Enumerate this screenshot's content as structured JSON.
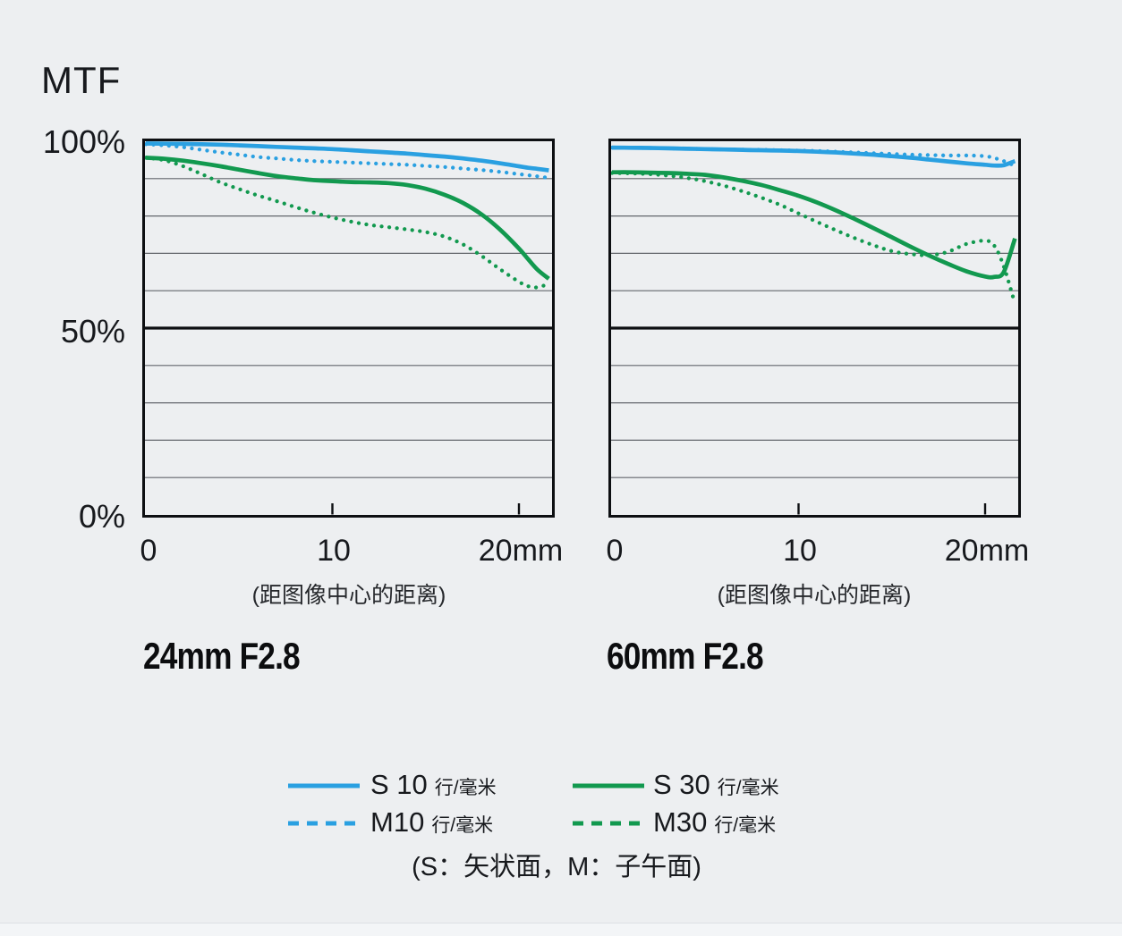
{
  "page": {
    "title": "MTF"
  },
  "colors": {
    "background": "#edeff1",
    "blue": "#2aa0e1",
    "green": "#12994f",
    "axis": "#0d0f12",
    "grid": "#63666c"
  },
  "axis": {
    "y_ticks": [
      "100%",
      "50%",
      "0%"
    ],
    "x_ticks": [
      "0",
      "10",
      "20mm"
    ],
    "x_caption": "(距图像中心的距离)"
  },
  "legend": {
    "items": [
      {
        "label": "S 10",
        "unit": "行/毫米",
        "color": "#2aa0e1",
        "style": "solid"
      },
      {
        "label": "S 30",
        "unit": "行/毫米",
        "color": "#12994f",
        "style": "solid"
      },
      {
        "label": "M10",
        "unit": "行/毫米",
        "color": "#2aa0e1",
        "style": "dashed"
      },
      {
        "label": "M30",
        "unit": "行/毫米",
        "color": "#12994f",
        "style": "dashed"
      }
    ],
    "note": "(S：矢状面，M：子午面)"
  },
  "chart_data": [
    {
      "type": "line",
      "title": "24mm F2.8",
      "xlabel": "(距图像中心的距离)",
      "ylabel": "MTF",
      "xlim": [
        0,
        21.6
      ],
      "ylim": [
        0,
        100
      ],
      "x_tick_values": [
        0,
        10,
        20
      ],
      "grid_step_pct": 10,
      "x": [
        0,
        1,
        2,
        3,
        4,
        5,
        6,
        7,
        8,
        9,
        10,
        11,
        12,
        13,
        14,
        15,
        16,
        17,
        18,
        19,
        20,
        20.5,
        21,
        21.6
      ],
      "series": [
        {
          "name": "S 10 行/毫米",
          "color": "#2aa0e1",
          "dashed": false,
          "values": [
            99.4,
            99.35,
            99.3,
            99.2,
            99.1,
            98.9,
            98.7,
            98.5,
            98.3,
            98.1,
            97.9,
            97.6,
            97.3,
            97.0,
            96.7,
            96.3,
            95.9,
            95.4,
            94.8,
            94.1,
            93.3,
            92.9,
            92.6,
            92.2
          ]
        },
        {
          "name": "M10 行/毫米",
          "color": "#2aa0e1",
          "dashed": true,
          "values": [
            99.2,
            98.9,
            98.4,
            97.7,
            97.0,
            96.4,
            95.8,
            95.4,
            95.0,
            94.7,
            94.5,
            94.3,
            94.1,
            93.9,
            93.7,
            93.4,
            93.1,
            92.7,
            92.3,
            91.8,
            91.2,
            90.9,
            90.6,
            90.2
          ]
        },
        {
          "name": "S 30 行/毫米",
          "color": "#12994f",
          "dashed": false,
          "values": [
            95.6,
            95.3,
            94.8,
            94.1,
            93.3,
            92.4,
            91.5,
            90.7,
            90.1,
            89.6,
            89.3,
            89.1,
            89.0,
            88.8,
            88.3,
            87.3,
            85.7,
            83.5,
            80.4,
            76.3,
            71.3,
            68.4,
            65.6,
            63.2
          ]
        },
        {
          "name": "M30 行/毫米",
          "color": "#12994f",
          "dashed": true,
          "values": [
            95.6,
            94.9,
            93.3,
            91.2,
            89.0,
            87.2,
            85.5,
            84.0,
            82.4,
            80.9,
            79.6,
            78.5,
            77.6,
            77.0,
            76.4,
            75.7,
            74.5,
            72.4,
            69.3,
            65.7,
            62.4,
            61.2,
            60.9,
            61.9
          ]
        }
      ]
    },
    {
      "type": "line",
      "title": "60mm F2.8",
      "xlabel": "(距图像中心的距离)",
      "ylabel": "MTF",
      "xlim": [
        0,
        21.6
      ],
      "ylim": [
        0,
        100
      ],
      "x_tick_values": [
        0,
        10,
        20
      ],
      "grid_step_pct": 10,
      "x": [
        0,
        1,
        2,
        3,
        4,
        5,
        6,
        7,
        8,
        9,
        10,
        11,
        12,
        13,
        14,
        15,
        16,
        17,
        18,
        19,
        20,
        20.5,
        21,
        21.6
      ],
      "series": [
        {
          "name": "S 10 行/毫米",
          "color": "#2aa0e1",
          "dashed": false,
          "values": [
            98.3,
            98.25,
            98.2,
            98.1,
            98.0,
            97.9,
            97.8,
            97.7,
            97.6,
            97.5,
            97.4,
            97.2,
            97.0,
            96.7,
            96.4,
            96.0,
            95.6,
            95.1,
            94.6,
            94.1,
            93.7,
            93.5,
            93.6,
            94.7
          ]
        },
        {
          "name": "M10 行/毫米",
          "color": "#2aa0e1",
          "dashed": true,
          "values": [
            98.3,
            98.25,
            98.2,
            98.1,
            98.0,
            97.9,
            97.8,
            97.75,
            97.7,
            97.6,
            97.5,
            97.4,
            97.2,
            97.0,
            96.8,
            96.6,
            96.4,
            96.3,
            96.2,
            96.2,
            96.0,
            95.5,
            94.7,
            93.4
          ]
        },
        {
          "name": "S 30 行/毫米",
          "color": "#12994f",
          "dashed": false,
          "values": [
            91.7,
            91.7,
            91.6,
            91.5,
            91.3,
            91.0,
            90.3,
            89.4,
            88.3,
            86.9,
            85.4,
            83.6,
            81.5,
            79.2,
            76.8,
            74.3,
            71.8,
            69.4,
            67.2,
            65.2,
            63.8,
            63.7,
            65.0,
            74.0
          ]
        },
        {
          "name": "M30 行/毫米",
          "color": "#12994f",
          "dashed": true,
          "values": [
            91.5,
            91.4,
            91.2,
            90.8,
            90.2,
            89.3,
            88.1,
            86.6,
            84.9,
            83.0,
            80.7,
            78.4,
            76.2,
            74.1,
            72.2,
            70.6,
            69.8,
            69.5,
            70.4,
            72.5,
            73.4,
            72.0,
            66.5,
            56.5
          ]
        }
      ]
    }
  ]
}
